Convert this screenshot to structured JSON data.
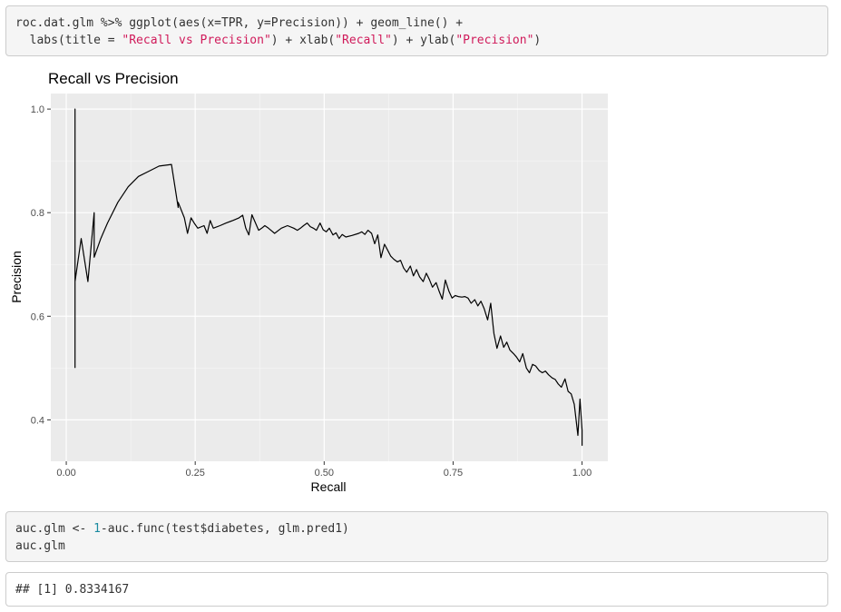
{
  "code_blocks": {
    "plot_code": {
      "line1": "roc.dat.glm %>% ggplot(aes(x=TPR, y=Precision)) + geom_line() +",
      "line2_a": "  labs(title = ",
      "line2_s1": "\"Recall vs Precision\"",
      "line2_b": ") + xlab(",
      "line2_s2": "\"Recall\"",
      "line2_c": ") + ylab(",
      "line2_s3": "\"Precision\"",
      "line2_d": ")"
    },
    "auc_code": {
      "line1_a": "auc.glm <- ",
      "line1_num": "1",
      "line1_b": "-auc.func(test$diabetes, glm.pred1)",
      "line2": "auc.glm"
    },
    "output": "## [1] 0.8334167"
  },
  "colors": {
    "panel_background": "#ebebeb",
    "gridline": "#ffffff",
    "line": "#000000",
    "string_literal": "#d01a5a",
    "number_literal": "#1a8aa0"
  },
  "chart_data": {
    "type": "line",
    "title": "Recall vs Precision",
    "xlabel": "Recall",
    "ylabel": "Precision",
    "xlim": [
      -0.03,
      1.05
    ],
    "ylim": [
      0.32,
      1.03
    ],
    "x_ticks": [
      0.0,
      0.25,
      0.5,
      0.75,
      1.0
    ],
    "x_tick_labels": [
      "0.00",
      "0.25",
      "0.50",
      "0.75",
      "1.00"
    ],
    "y_ticks": [
      0.4,
      0.6,
      0.8,
      1.0
    ],
    "y_tick_labels": [
      "0.4",
      "0.6",
      "0.8",
      "1.0"
    ],
    "grid": true,
    "series": [
      {
        "x": [
          0.017,
          0.017,
          0.017,
          0.029,
          0.042,
          0.054,
          0.054,
          0.067,
          0.08,
          0.1,
          0.12,
          0.14,
          0.16,
          0.18,
          0.204,
          0.217,
          0.217,
          0.229,
          0.235,
          0.242,
          0.248,
          0.255,
          0.267,
          0.273,
          0.279,
          0.285,
          0.298,
          0.31,
          0.323,
          0.335,
          0.342,
          0.348,
          0.354,
          0.36,
          0.373,
          0.379,
          0.385,
          0.392,
          0.404,
          0.417,
          0.429,
          0.441,
          0.448,
          0.454,
          0.46,
          0.467,
          0.473,
          0.479,
          0.485,
          0.492,
          0.498,
          0.504,
          0.51,
          0.517,
          0.523,
          0.529,
          0.535,
          0.542,
          0.554,
          0.567,
          0.573,
          0.579,
          0.585,
          0.592,
          0.598,
          0.604,
          0.61,
          0.617,
          0.623,
          0.629,
          0.635,
          0.642,
          0.648,
          0.654,
          0.66,
          0.667,
          0.673,
          0.679,
          0.685,
          0.692,
          0.698,
          0.704,
          0.71,
          0.717,
          0.723,
          0.729,
          0.735,
          0.742,
          0.748,
          0.754,
          0.76,
          0.767,
          0.773,
          0.779,
          0.785,
          0.792,
          0.798,
          0.804,
          0.81,
          0.817,
          0.823,
          0.829,
          0.835,
          0.842,
          0.848,
          0.854,
          0.86,
          0.867,
          0.873,
          0.879,
          0.885,
          0.892,
          0.898,
          0.904,
          0.91,
          0.917,
          0.923,
          0.929,
          0.935,
          0.942,
          0.948,
          0.954,
          0.96,
          0.967,
          0.973,
          0.979,
          0.985,
          0.992,
          0.996,
          1.0,
          1.0
        ],
        "y": [
          0.5,
          1.0,
          0.667,
          0.75,
          0.667,
          0.8,
          0.714,
          0.75,
          0.78,
          0.82,
          0.85,
          0.87,
          0.88,
          0.89,
          0.893,
          0.81,
          0.82,
          0.79,
          0.76,
          0.79,
          0.78,
          0.77,
          0.775,
          0.76,
          0.785,
          0.77,
          0.775,
          0.78,
          0.785,
          0.79,
          0.795,
          0.77,
          0.757,
          0.796,
          0.766,
          0.77,
          0.775,
          0.77,
          0.76,
          0.77,
          0.775,
          0.77,
          0.766,
          0.77,
          0.775,
          0.78,
          0.773,
          0.77,
          0.766,
          0.78,
          0.767,
          0.763,
          0.77,
          0.757,
          0.761,
          0.75,
          0.758,
          0.753,
          0.756,
          0.76,
          0.763,
          0.758,
          0.766,
          0.76,
          0.74,
          0.757,
          0.713,
          0.739,
          0.728,
          0.716,
          0.71,
          0.705,
          0.708,
          0.693,
          0.685,
          0.697,
          0.678,
          0.69,
          0.676,
          0.667,
          0.683,
          0.671,
          0.656,
          0.665,
          0.648,
          0.633,
          0.67,
          0.648,
          0.635,
          0.64,
          0.638,
          0.637,
          0.638,
          0.635,
          0.625,
          0.632,
          0.62,
          0.629,
          0.615,
          0.593,
          0.625,
          0.567,
          0.538,
          0.562,
          0.54,
          0.55,
          0.535,
          0.528,
          0.521,
          0.512,
          0.528,
          0.5,
          0.491,
          0.507,
          0.504,
          0.495,
          0.491,
          0.494,
          0.487,
          0.481,
          0.478,
          0.469,
          0.463,
          0.479,
          0.455,
          0.45,
          0.43,
          0.37,
          0.44,
          0.38,
          0.35
        ]
      }
    ]
  }
}
